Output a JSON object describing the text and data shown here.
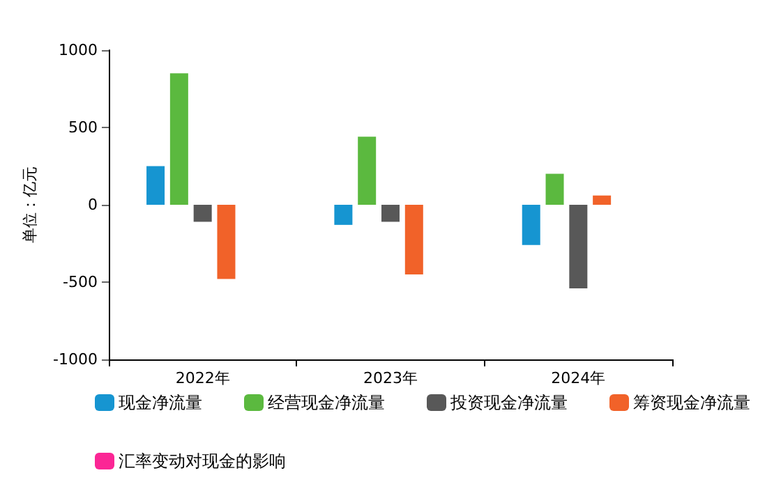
{
  "chart_data": {
    "type": "bar",
    "ylabel": "单位：亿元",
    "categories": [
      "2022年",
      "2023年",
      "2024年"
    ],
    "series": [
      {
        "name": "现金净流量",
        "color": "#0a8fcf",
        "values": [
          250,
          -130,
          -260
        ]
      },
      {
        "name": "经营现金净流量",
        "color": "#52b535",
        "values": [
          850,
          440,
          200
        ]
      },
      {
        "name": "投资现金净流量",
        "color": "#4f4f4f",
        "values": [
          -110,
          -110,
          -540
        ]
      },
      {
        "name": "筹资现金净流量",
        "color": "#f05a1e",
        "values": [
          -480,
          -450,
          60
        ]
      },
      {
        "name": "汇率变动对现金的影响",
        "color": "#fb1a8f",
        "values": [
          0,
          0,
          0
        ]
      }
    ],
    "ylim": [
      -1000,
      1000
    ],
    "yticks": [
      -1000,
      -500,
      0,
      500,
      1000
    ],
    "legend": "bottom"
  }
}
